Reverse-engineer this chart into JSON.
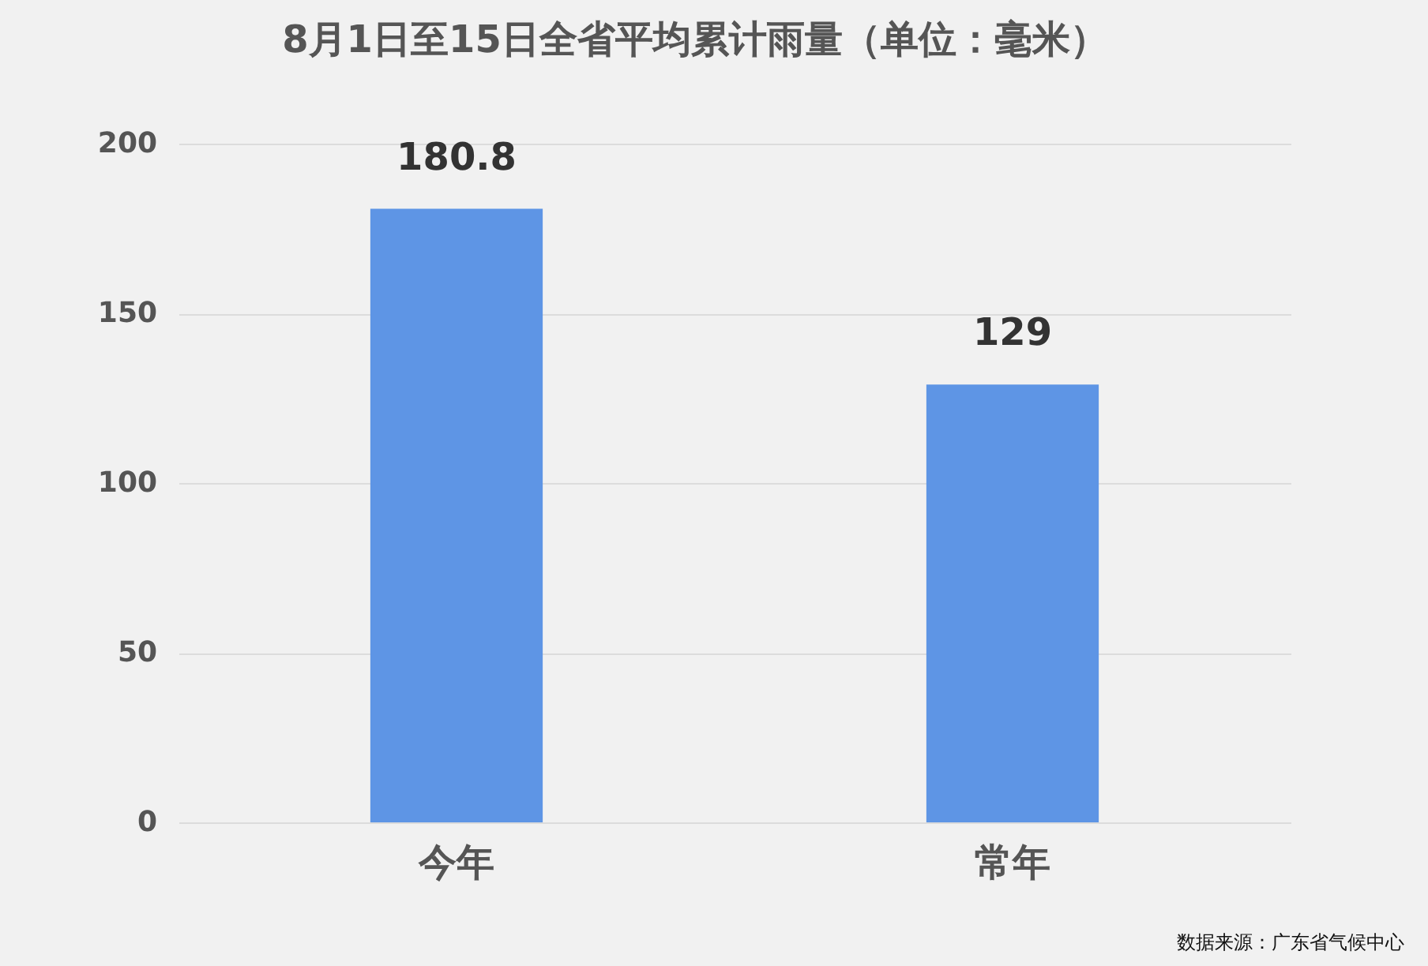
{
  "chart_data": {
    "type": "bar",
    "title": "8月1日至15日全省平均累计雨量（单位：毫米）",
    "categories": [
      "今年",
      "常年"
    ],
    "values": [
      180.8,
      129
    ],
    "color": "#5e95e5",
    "ylim": [
      0,
      200
    ],
    "yticks": [
      0,
      50,
      100,
      150,
      200
    ],
    "grid": "y",
    "data_labels": true,
    "annotations": [
      "数据来源：广东省气候中心"
    ]
  }
}
